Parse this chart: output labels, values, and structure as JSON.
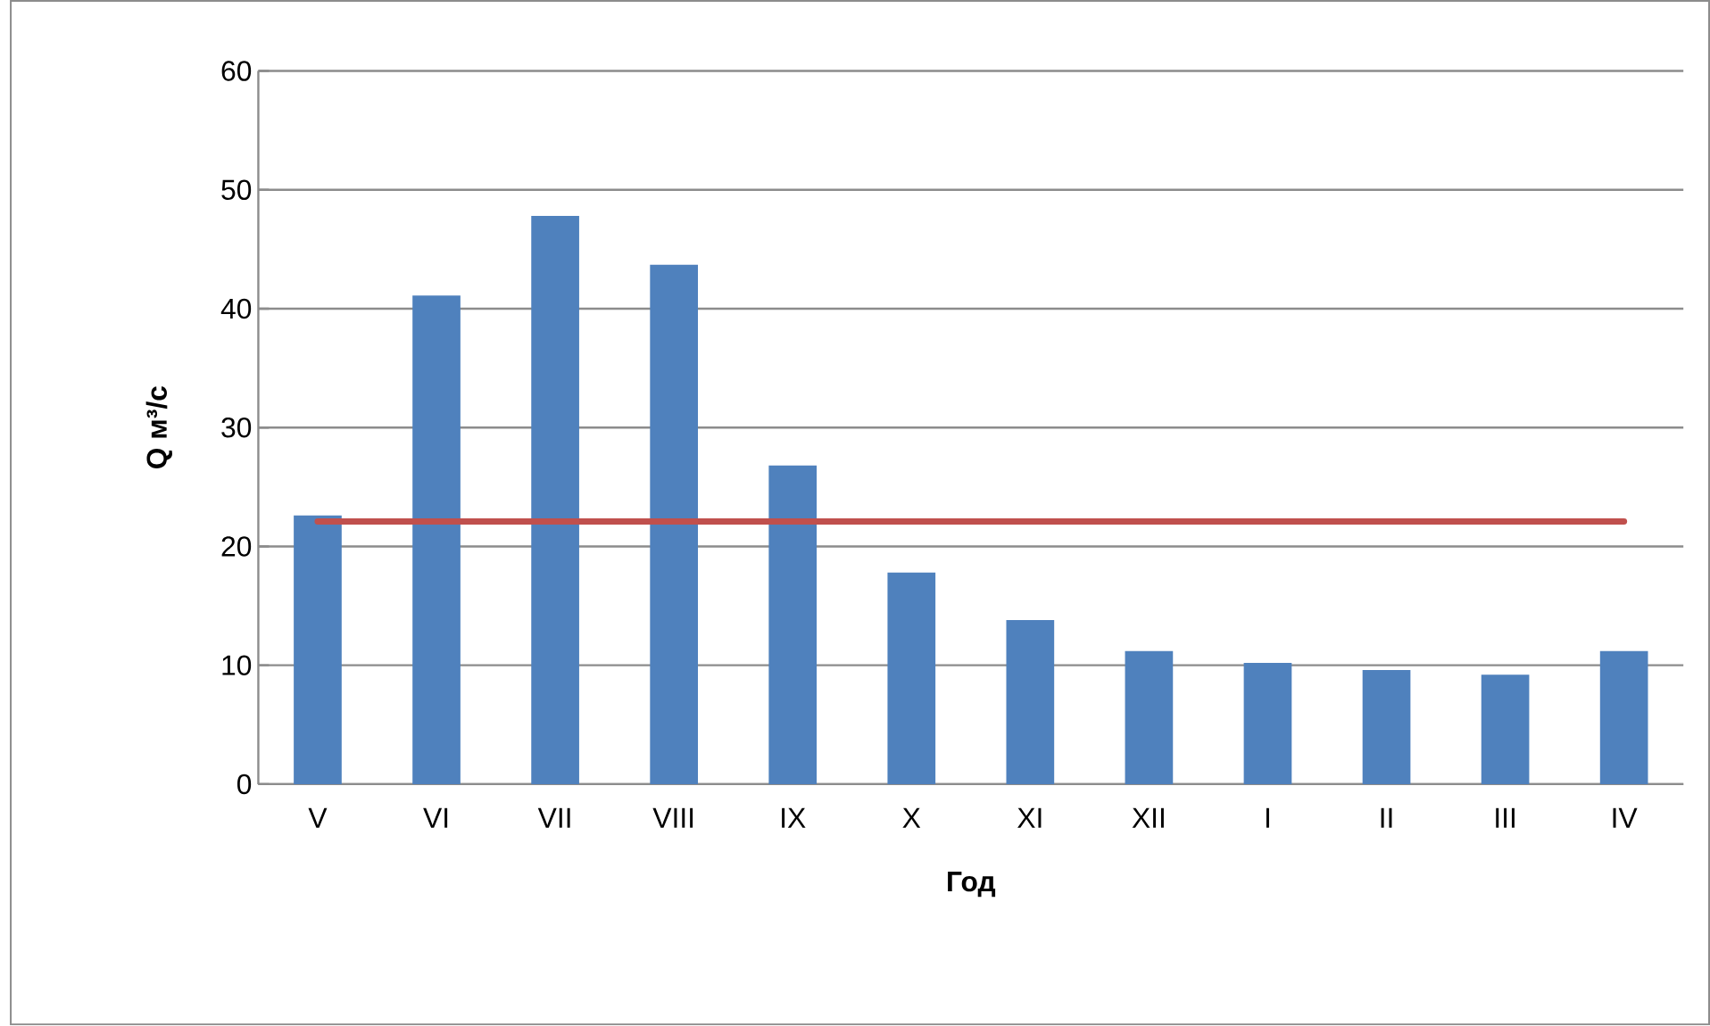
{
  "chart_data": {
    "type": "bar",
    "xlabel": "Год",
    "ylabel": "Q м³/с",
    "categories": [
      "V",
      "VI",
      "VII",
      "VIII",
      "IX",
      "X",
      "XI",
      "XII",
      "I",
      "II",
      "III",
      "IV"
    ],
    "series": [
      {
        "color": "#4f81bd",
        "values": [
          22.6,
          41.1,
          47.8,
          43.7,
          26.8,
          17.8,
          13.8,
          11.2,
          10.2,
          9.6,
          9.2,
          11.2
        ]
      },
      {
        "type": "line",
        "color": "#c0504d",
        "values": [
          22.1,
          22.1,
          22.1,
          22.1,
          22.1,
          22.1,
          22.1,
          22.1,
          22.1,
          22.1,
          22.1,
          22.1
        ]
      }
    ],
    "ylim": [
      0,
      60
    ],
    "yticks": [
      0,
      10,
      20,
      30,
      40,
      50,
      60
    ],
    "grid": "y"
  }
}
